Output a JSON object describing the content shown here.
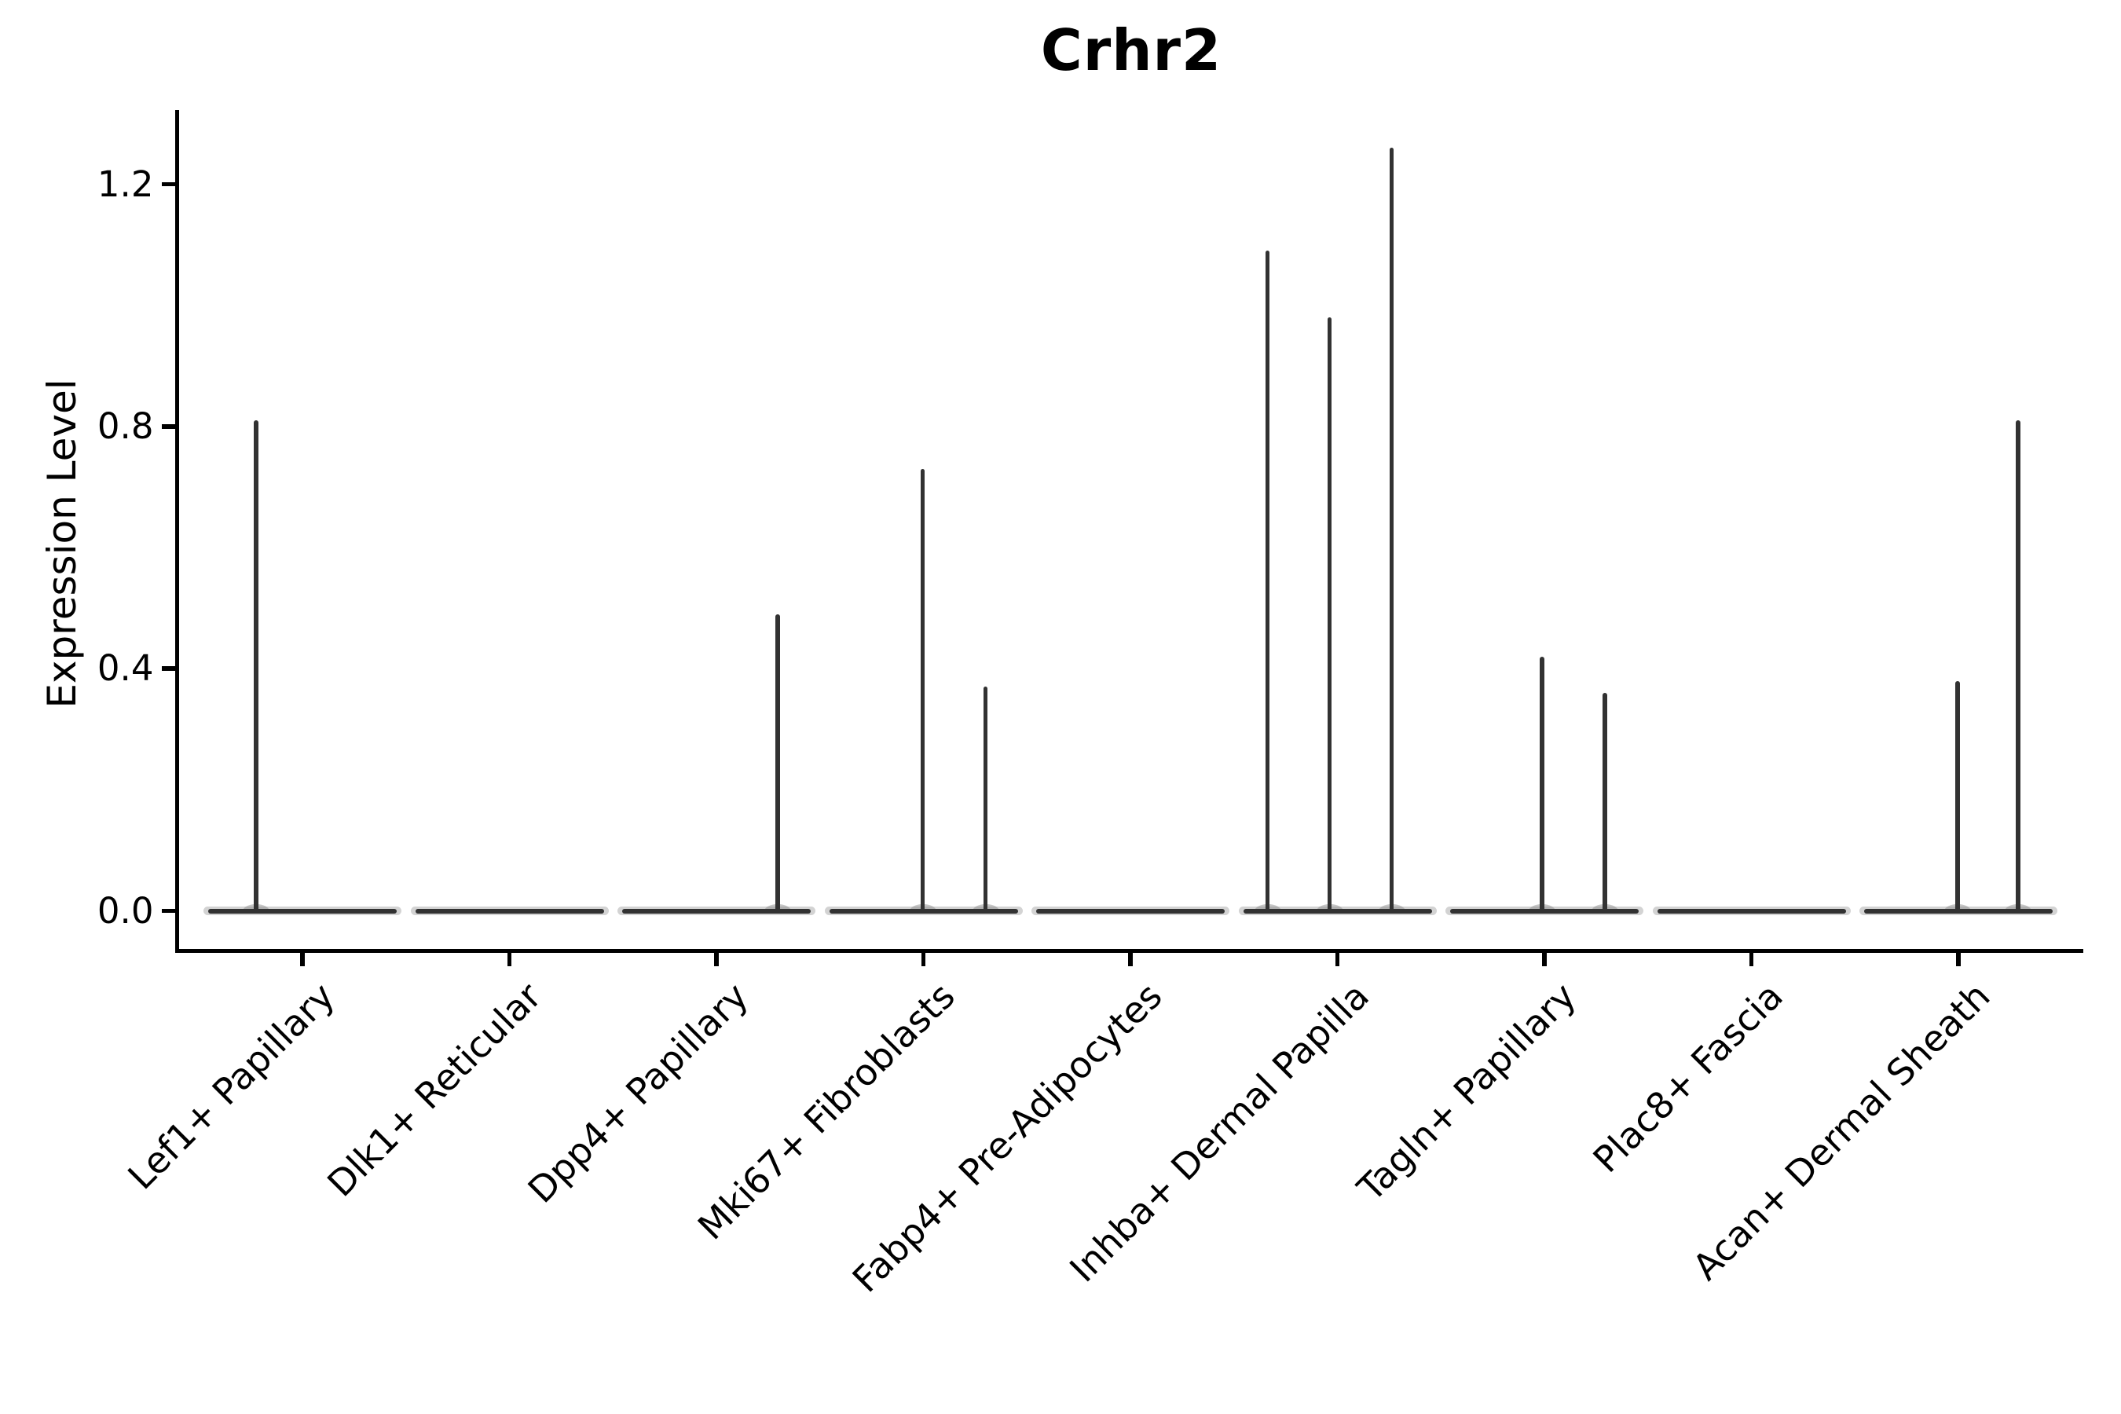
{
  "title": "Crhr2",
  "chart_data": {
    "type": "violin",
    "title": "Crhr2",
    "xlabel": "",
    "ylabel": "Expression Level",
    "ylim": [
      0,
      1.3
    ],
    "grid": false,
    "legend": null,
    "background_color": "#ffffff",
    "violin_stroke_color": "#323232",
    "axis_color": "#000000",
    "yticks": [
      {
        "value": 0.0,
        "label": "0.0"
      },
      {
        "value": 0.4,
        "label": "0.4"
      },
      {
        "value": 0.8,
        "label": "0.8"
      },
      {
        "value": 1.2,
        "label": "1.2"
      }
    ],
    "categories": [
      "Lef1+ Papillary",
      "Dlk1+ Reticular",
      "Dpp4+ Papillary",
      "Mki67+ Fibroblasts",
      "Fabp4+ Pre-Adipocytes",
      "Inhba+ Dermal Papilla",
      "Tagln+ Papillary",
      "Plac8+ Fascia",
      "Acan+ Dermal Sheath"
    ],
    "violins": [
      {
        "category": "Lef1+ Papillary",
        "body_value": 0.0,
        "spikes": [
          {
            "value": 0.81,
            "x_offset": -59
          }
        ]
      },
      {
        "category": "Dlk1+ Reticular",
        "body_value": 0.0,
        "spikes": []
      },
      {
        "category": "Dpp4+ Papillary",
        "body_value": 0.0,
        "spikes": [
          {
            "value": 0.49,
            "x_offset": 78
          }
        ]
      },
      {
        "category": "Mki67+ Fibroblasts",
        "body_value": 0.0,
        "spikes": [
          {
            "value": 0.73,
            "x_offset": -1
          },
          {
            "value": 0.37,
            "x_offset": 79
          }
        ]
      },
      {
        "category": "Fabp4+ Pre-Adipocytes",
        "body_value": 0.0,
        "spikes": []
      },
      {
        "category": "Inhba+ Dermal Papilla",
        "body_value": 0.0,
        "spikes": [
          {
            "value": 1.09,
            "x_offset": -89
          },
          {
            "value": 0.98,
            "x_offset": -10
          },
          {
            "value": 1.26,
            "x_offset": 69
          }
        ]
      },
      {
        "category": "Tagln+ Papillary",
        "body_value": 0.0,
        "spikes": [
          {
            "value": 0.42,
            "x_offset": -3
          },
          {
            "value": 0.36,
            "x_offset": 77
          }
        ]
      },
      {
        "category": "Plac8+ Fascia",
        "body_value": 0.0,
        "spikes": []
      },
      {
        "category": "Acan+ Dermal Sheath",
        "body_value": 0.0,
        "spikes": [
          {
            "value": 0.38,
            "x_offset": -1
          },
          {
            "value": 0.81,
            "x_offset": 76
          }
        ]
      }
    ]
  }
}
